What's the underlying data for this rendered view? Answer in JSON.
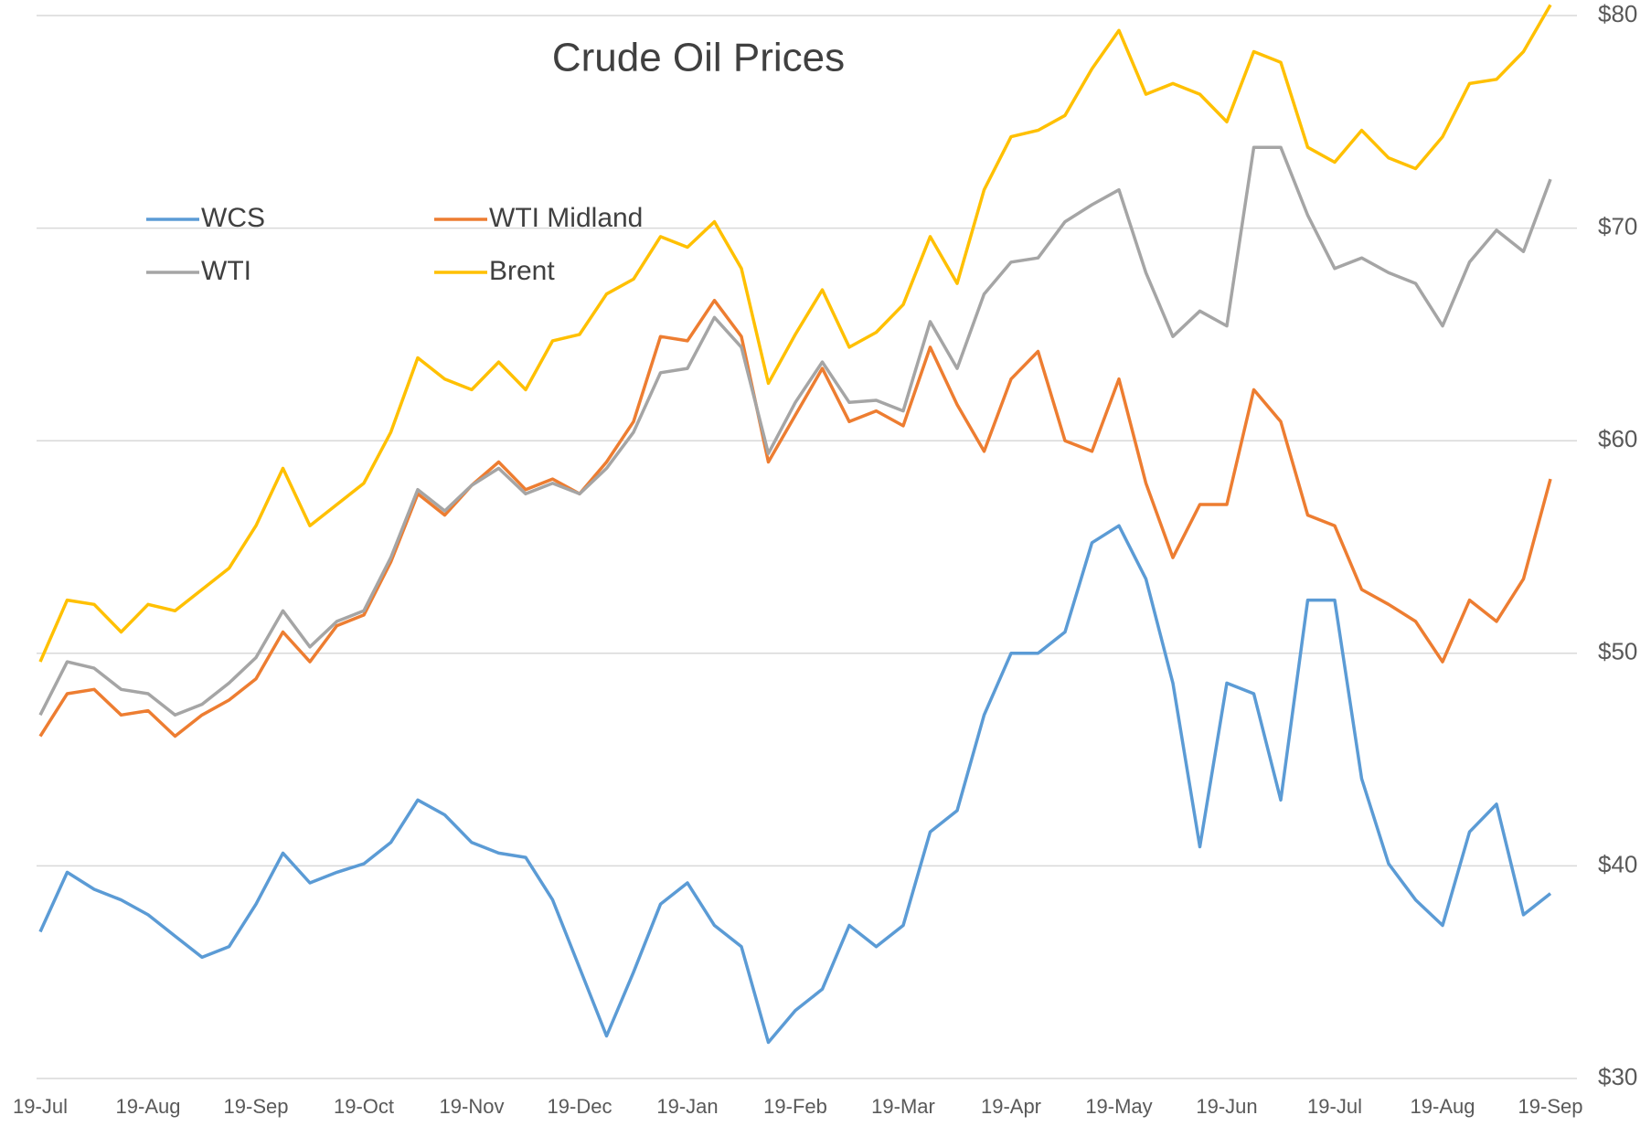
{
  "chart_data": {
    "type": "line",
    "title": "Crude Oil Prices",
    "categories": [
      "19-Jul",
      null,
      null,
      null,
      "19-Aug",
      null,
      null,
      null,
      "19-Sep",
      null,
      null,
      null,
      "19-Oct",
      null,
      null,
      null,
      "19-Nov",
      null,
      null,
      null,
      "19-Dec",
      null,
      null,
      null,
      "19-Jan",
      null,
      null,
      null,
      "19-Feb",
      null,
      null,
      null,
      "19-Mar",
      null,
      null,
      null,
      "19-Apr",
      null,
      null,
      null,
      "19-May",
      null,
      null,
      null,
      "19-Jun",
      null,
      null,
      null,
      "19-Jul",
      null,
      null,
      null,
      "19-Aug",
      null,
      null,
      null,
      "19-Sep"
    ],
    "series": [
      {
        "name": "WCS",
        "color": "#5b9bd5",
        "values": [
          36.9,
          39.7,
          38.9,
          38.4,
          37.7,
          36.7,
          35.7,
          36.2,
          38.2,
          40.6,
          39.2,
          39.7,
          40.1,
          41.1,
          43.1,
          42.4,
          41.1,
          40.6,
          40.4,
          38.4,
          35.2,
          32,
          35,
          38.2,
          39.2,
          37.2,
          36.2,
          31.7,
          33.2,
          34.2,
          37.2,
          36.2,
          37.2,
          41.6,
          42.6,
          47.1,
          50,
          50,
          51,
          55.2,
          56,
          53.5,
          48.6,
          40.9,
          48.6,
          48.1,
          43.1,
          52.5,
          52.5,
          44.1,
          40.1,
          38.4,
          37.2,
          41.6,
          42.9,
          37.7,
          38.7
        ]
      },
      {
        "name": "WTI Midland",
        "color": "#ed7d31",
        "values": [
          46.1,
          48.1,
          48.3,
          47.1,
          47.3,
          46.1,
          47.1,
          47.8,
          48.8,
          51,
          49.6,
          51.3,
          51.8,
          54.3,
          57.5,
          56.5,
          57.9,
          59,
          57.7,
          58.2,
          57.5,
          59,
          60.9,
          64.9,
          64.7,
          66.6,
          64.9,
          59,
          61.2,
          63.4,
          60.9,
          61.4,
          60.7,
          64.4,
          61.7,
          59.5,
          62.9,
          64.2,
          60,
          59.5,
          62.9,
          58,
          54.5,
          57,
          57,
          62.4,
          60.9,
          56.5,
          56,
          53,
          52.3,
          51.5,
          49.6,
          52.5,
          51.5,
          53.5,
          58.2
        ]
      },
      {
        "name": "WTI",
        "color": "#a5a5a5",
        "values": [
          47.1,
          49.6,
          49.3,
          48.3,
          48.1,
          47.1,
          47.6,
          48.6,
          49.8,
          52,
          50.3,
          51.5,
          52,
          54.5,
          57.7,
          56.7,
          57.9,
          58.7,
          57.5,
          58,
          57.5,
          58.7,
          60.4,
          63.2,
          63.4,
          65.8,
          64.4,
          59.4,
          61.8,
          63.7,
          61.8,
          61.9,
          61.4,
          65.6,
          63.4,
          66.9,
          68.4,
          68.6,
          70.3,
          71.1,
          71.8,
          67.9,
          64.9,
          66.1,
          65.4,
          73.8,
          73.8,
          70.6,
          68.1,
          68.6,
          67.9,
          67.4,
          65.4,
          68.4,
          69.9,
          68.9,
          72.3
        ]
      },
      {
        "name": "Brent",
        "color": "#ffc000",
        "values": [
          49.6,
          52.5,
          52.3,
          51,
          52.3,
          52,
          53,
          54,
          56,
          58.7,
          56,
          57,
          58,
          60.4,
          63.9,
          62.9,
          62.4,
          63.7,
          62.4,
          64.7,
          65,
          66.9,
          67.6,
          69.6,
          69.1,
          70.3,
          68.1,
          62.7,
          65,
          67.1,
          64.4,
          65.1,
          66.4,
          69.6,
          67.4,
          71.8,
          74.3,
          74.6,
          75.3,
          77.5,
          79.3,
          76.3,
          76.8,
          76.3,
          75,
          78.3,
          77.8,
          73.8,
          73.1,
          74.6,
          73.3,
          72.8,
          74.3,
          76.8,
          77,
          78.3,
          80.5
        ]
      }
    ],
    "ylim": [
      30,
      80
    ],
    "yticks": [
      {
        "value": 30,
        "label": "$30"
      },
      {
        "value": 40,
        "label": "$40"
      },
      {
        "value": 50,
        "label": "$50"
      },
      {
        "value": 60,
        "label": "$60"
      },
      {
        "value": 70,
        "label": "$70"
      },
      {
        "value": 80,
        "label": "$80"
      }
    ],
    "grid": true,
    "legend": "top-left"
  }
}
